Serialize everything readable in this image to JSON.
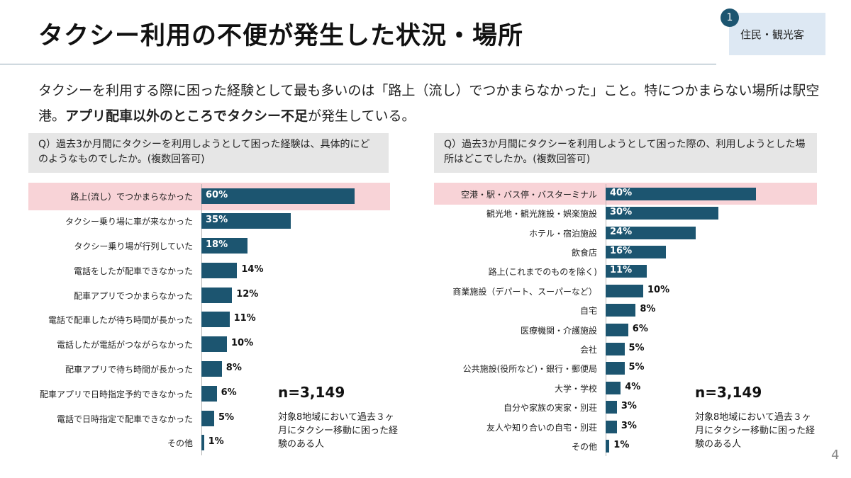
{
  "header": {
    "title": "タクシー利用の不便が発生した状況・場所"
  },
  "badge": {
    "number": "1",
    "label": "住民・観光客"
  },
  "lead": {
    "part1": "タクシーを利用する際に困った経験として最も多いのは「路上（流し）でつかまらなかった」こと。特につかまらない場所は駅空港。",
    "bold": "アプリ配車以外のところでタクシー不足",
    "part2": "が発生している。"
  },
  "left_question": "Q）過去3か月間にタクシーを利用しようとして困った経験は、具体的にどのようなものでしたか。(複数回答可)",
  "right_question": "Q）過去3か月間にタクシーを利用しようとして困った際の、利用しようとした場所はどこでしたか。(複数回答可)",
  "left_n": "n=3,149",
  "left_note": "対象8地域において過去３ヶ月にタクシー移動に困った経験のある人",
  "right_n": "n=3,149",
  "right_note": "対象8地域において過去３ヶ月にタクシー移動に困った経験のある人",
  "page_number": "4",
  "colors": {
    "bar": "#1c5570",
    "highlight": "#f8d3d7"
  },
  "chart_data": [
    {
      "type": "bar",
      "orientation": "horizontal",
      "title": "",
      "categories": [
        "路上(流し）でつかまらなかった",
        "タクシー乗り場に車が来なかった",
        "タクシー乗り場が行列していた",
        "電話をしたが配車できなかった",
        "配車アプリでつかまらなかった",
        "電話で配車したが待ち時間が長かった",
        "電話したが電話がつながらなかった",
        "配車アプリで待ち時間が長かった",
        "配車アプリで日時指定予約できなかった",
        "電話で日時指定で配車できなかった",
        "その他"
      ],
      "values": [
        60,
        35,
        18,
        14,
        12,
        11,
        10,
        8,
        6,
        5,
        1
      ],
      "labels": [
        "60%",
        "35%",
        "18%",
        "14%",
        "12%",
        "11%",
        "10%",
        "8%",
        "6%",
        "5%",
        "1%"
      ],
      "unit": "%",
      "highlight_index": 0
    },
    {
      "type": "bar",
      "orientation": "horizontal",
      "title": "",
      "categories": [
        "空港・駅・バス停・バスターミナル",
        "観光地・観光施設・娯楽施設",
        "ホテル・宿泊施設",
        "飲食店",
        "路上(これまでのものを除く)",
        "商業施設（デパート、スーパーなど）",
        "自宅",
        "医療機関・介護施設",
        "会社",
        "公共施設(役所など)・銀行・郵便局",
        "大学・学校",
        "自分や家族の実家・別荘",
        "友人や知り合いの自宅・別荘",
        "その他"
      ],
      "values": [
        40,
        30,
        24,
        16,
        11,
        10,
        8,
        6,
        5,
        5,
        4,
        3,
        3,
        1
      ],
      "labels": [
        "40%",
        "30%",
        "24%",
        "16%",
        "11%",
        "10%",
        "8%",
        "6%",
        "5%",
        "5%",
        "4%",
        "3%",
        "3%",
        "1%"
      ],
      "unit": "%",
      "highlight_index": 0
    }
  ]
}
